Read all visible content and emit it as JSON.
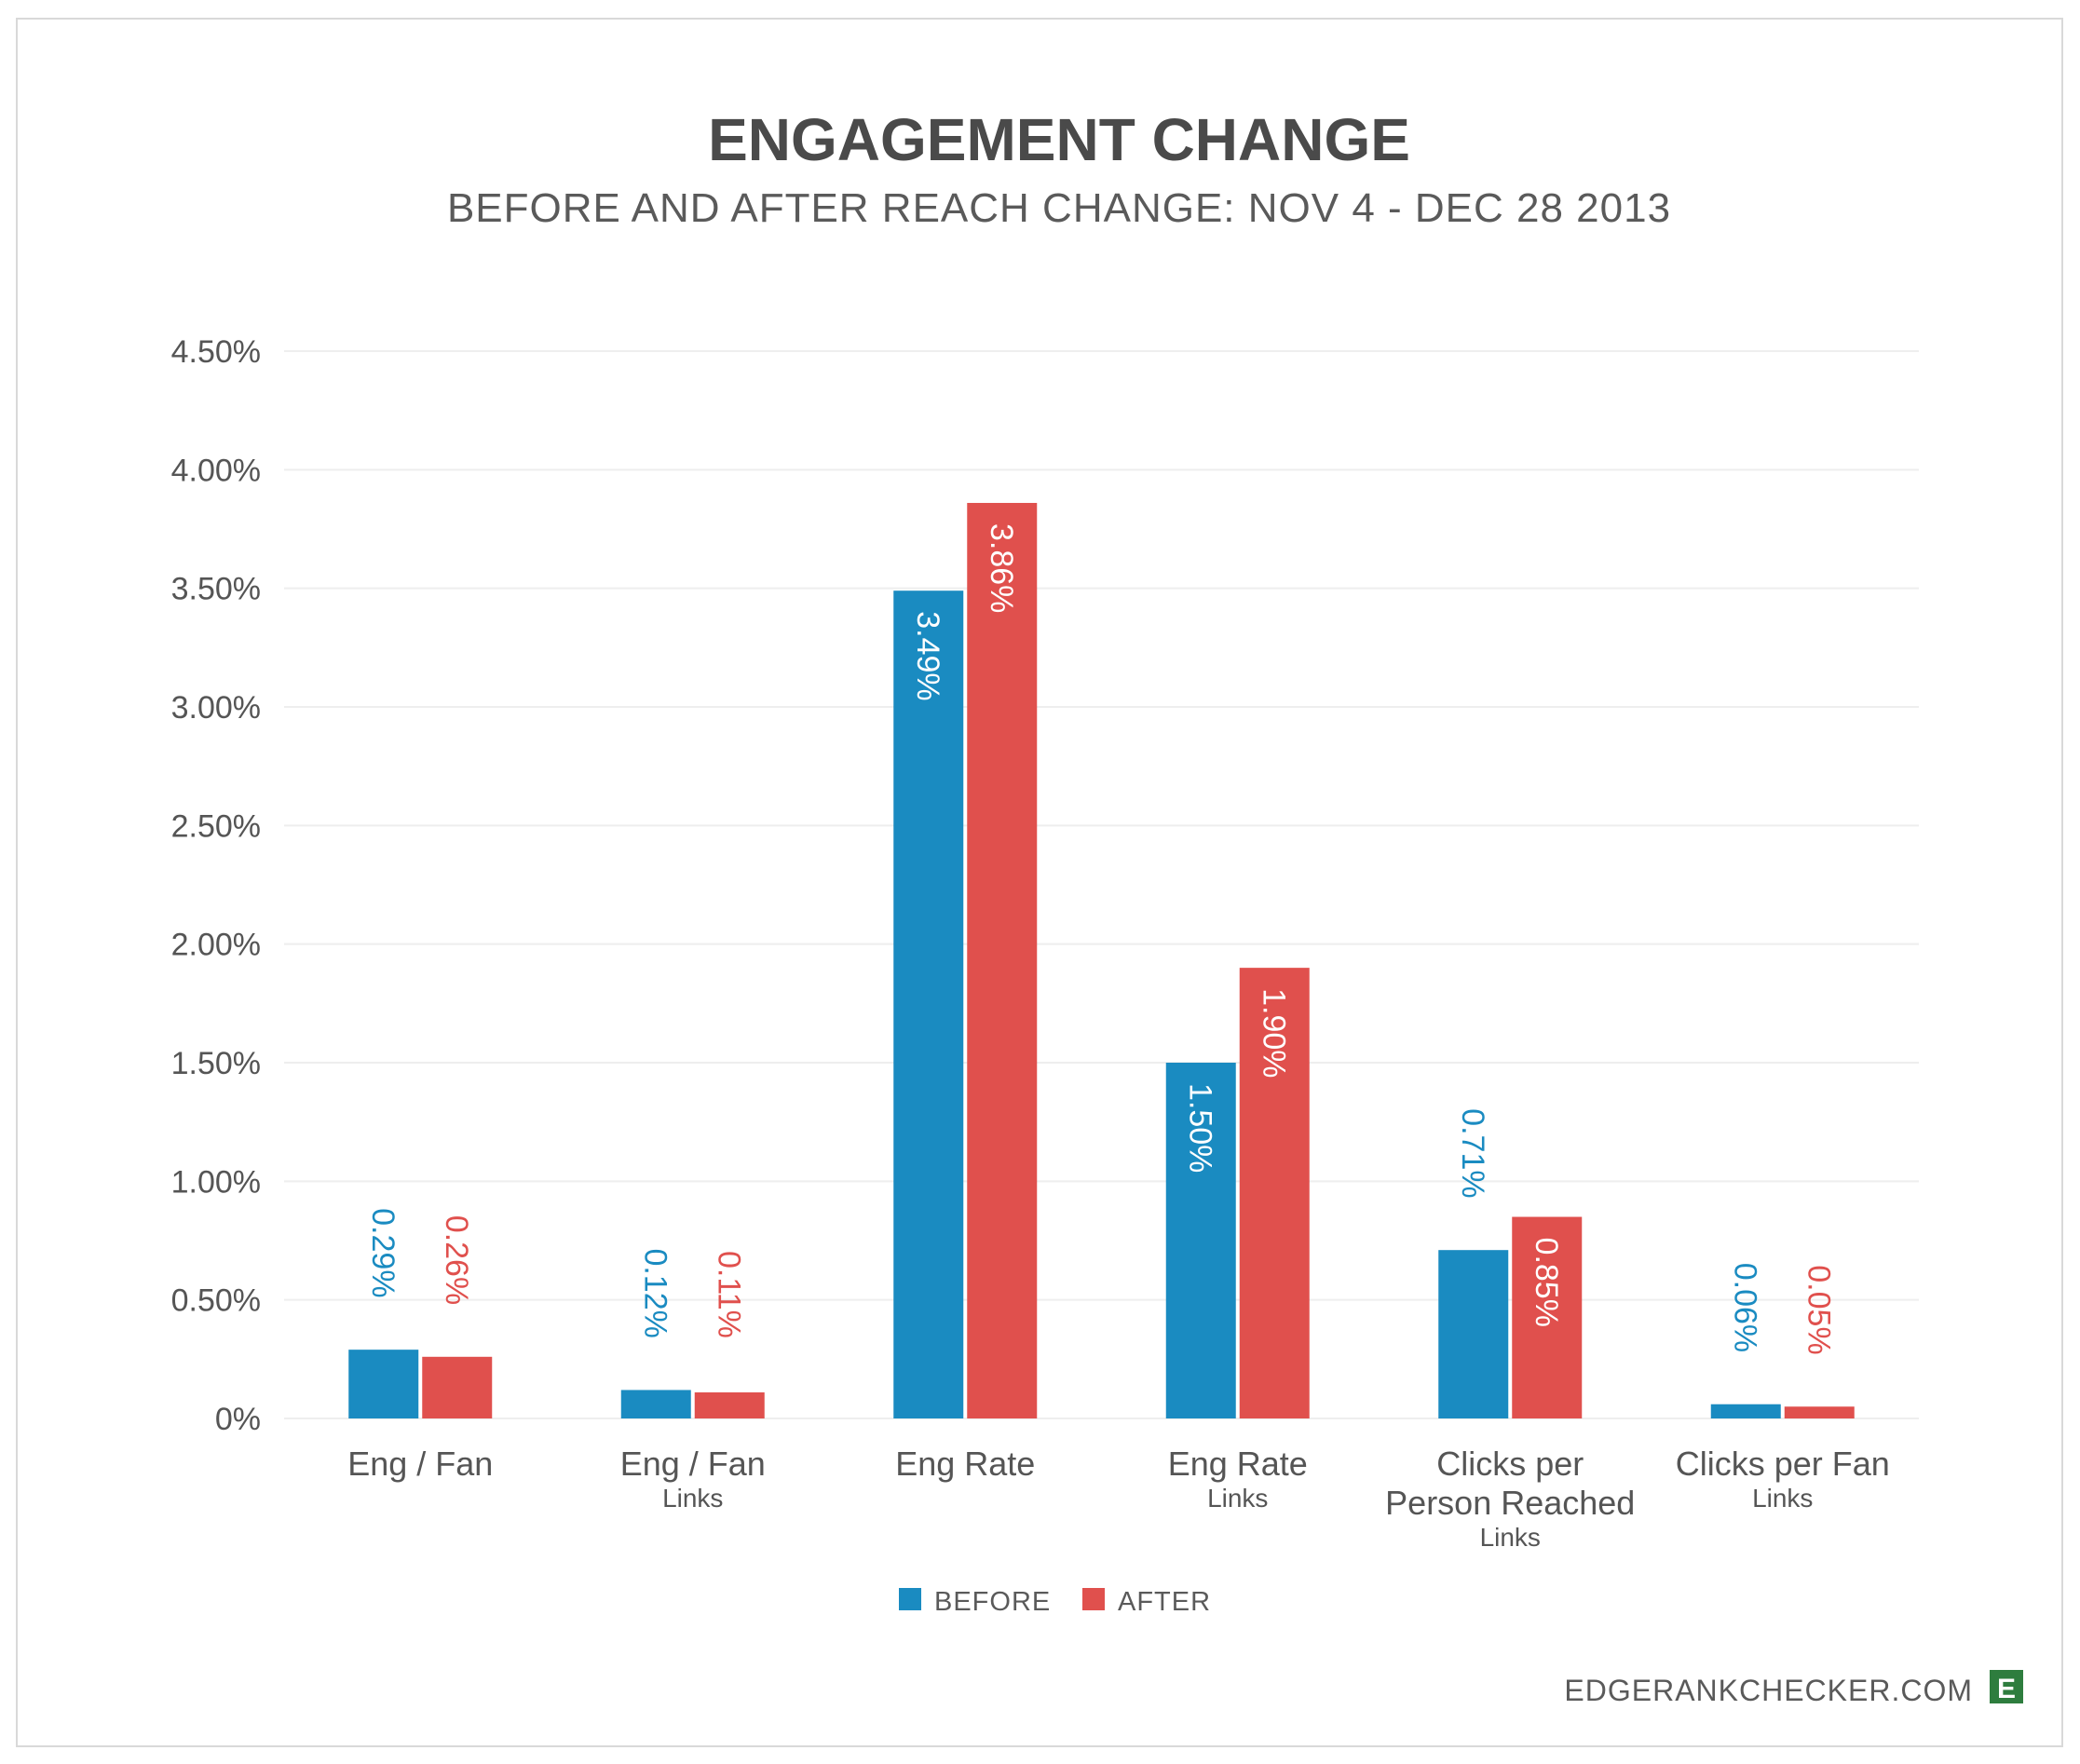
{
  "colors": {
    "before": "#1a8bc1",
    "after": "#e0504d",
    "logo_bg": "#2e7d3e",
    "frame": "#d9d9d9",
    "grid": "#eeeeee"
  },
  "footer": {
    "site": "EDGERANKCHECKER.COM",
    "logo_letter": "E"
  },
  "chart_data": {
    "type": "bar",
    "title": "ENGAGEMENT CHANGE",
    "subtitle": "BEFORE AND AFTER REACH CHANGE: NOV 4 - DEC 28 2013",
    "categories": [
      {
        "lines": [
          "Eng / Fan"
        ],
        "sub": ""
      },
      {
        "lines": [
          "Eng / Fan"
        ],
        "sub": "Links"
      },
      {
        "lines": [
          "Eng Rate"
        ],
        "sub": ""
      },
      {
        "lines": [
          "Eng Rate"
        ],
        "sub": "Links"
      },
      {
        "lines": [
          "Clicks per",
          "Person Reached"
        ],
        "sub": "Links"
      },
      {
        "lines": [
          "Clicks per Fan"
        ],
        "sub": "Links"
      }
    ],
    "series": [
      {
        "name": "BEFORE",
        "values": [
          0.29,
          0.12,
          3.49,
          1.5,
          0.71,
          0.06
        ],
        "labels": [
          "0.29%",
          "0.12%",
          "3.49%",
          "1.50%",
          "0.71%",
          "0.06%"
        ]
      },
      {
        "name": "AFTER",
        "values": [
          0.26,
          0.11,
          3.86,
          1.9,
          0.85,
          0.05
        ],
        "labels": [
          "0.26%",
          "0.11%",
          "3.86%",
          "1.90%",
          "0.85%",
          "0.05%"
        ]
      }
    ],
    "yticks": [
      {
        "value": 0,
        "label": "0%"
      },
      {
        "value": 0.5,
        "label": "0.50%"
      },
      {
        "value": 1.0,
        "label": "1.00%"
      },
      {
        "value": 1.5,
        "label": "1.50%"
      },
      {
        "value": 2.0,
        "label": "2.00%"
      },
      {
        "value": 2.5,
        "label": "2.50%"
      },
      {
        "value": 3.0,
        "label": "3.00%"
      },
      {
        "value": 3.5,
        "label": "3.50%"
      },
      {
        "value": 4.0,
        "label": "4.00%"
      },
      {
        "value": 4.5,
        "label": "4.50%"
      }
    ],
    "ylim": [
      0,
      4.5
    ],
    "grid": true,
    "legend": "bottom-center"
  }
}
